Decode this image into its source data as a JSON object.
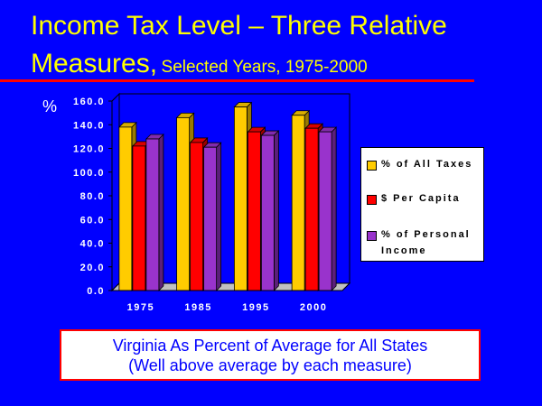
{
  "header": {
    "title_main": "Income Tax Level – Three Relative Measures,",
    "title_sub": "Selected Years, 1975-2000"
  },
  "note": {
    "line1": "Virginia As Percent of Average for All States",
    "line2": "(Well above average by each measure)"
  },
  "chart_data": {
    "type": "bar",
    "title": "",
    "ylabel": "%",
    "xlabel": "",
    "categories": [
      "1975",
      "1985",
      "1995",
      "2000"
    ],
    "ylim": [
      0,
      160
    ],
    "yticks": [
      "0.0",
      "20.0",
      "40.0",
      "60.0",
      "80.0",
      "100.0",
      "120.0",
      "140.0",
      "160.0"
    ],
    "grid": false,
    "legend_position": "right",
    "series": [
      {
        "name": "% of All Taxes",
        "values": [
          138,
          146,
          155,
          148
        ],
        "color": "#ffcc00"
      },
      {
        "name": "$ Per Capita",
        "values": [
          122,
          125,
          134,
          137
        ],
        "color": "#ff0000"
      },
      {
        "name": "% of Personal Income",
        "values": [
          128,
          121,
          131,
          134
        ],
        "color": "#9933cc"
      }
    ]
  }
}
